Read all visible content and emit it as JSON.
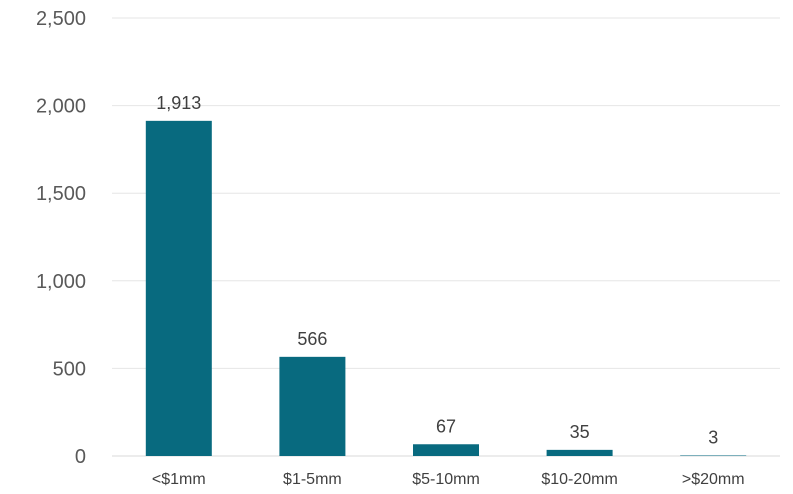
{
  "chart_data": {
    "type": "bar",
    "title": "",
    "xlabel": "",
    "ylabel": "",
    "categories": [
      "<$1mm",
      "$1-5mm",
      "$5-10mm",
      "$10-20mm",
      ">$20mm"
    ],
    "values": [
      1913,
      566,
      67,
      35,
      3
    ],
    "data_labels": [
      "1,913",
      "566",
      "67",
      "35",
      "3"
    ],
    "ylim": [
      0,
      2500
    ],
    "yticks": [
      0,
      500,
      1000,
      1500,
      2000,
      2500
    ],
    "ytick_labels": [
      "0",
      "500",
      "1,000",
      "1,500",
      "2,000",
      "2,500"
    ],
    "grid": true,
    "legend": "none",
    "colors": {
      "bar": "#086a7f",
      "grid": "#e6e6e6",
      "axis": "#d9d9d9",
      "tick_text": "#595959",
      "label_text": "#404040"
    }
  }
}
